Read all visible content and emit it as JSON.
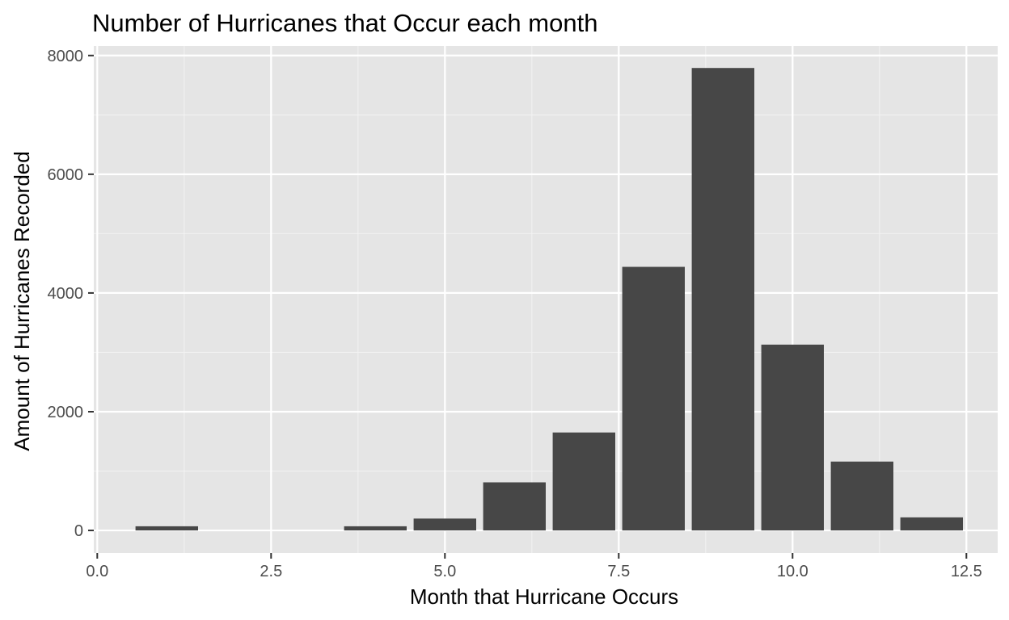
{
  "chart_data": {
    "type": "bar",
    "title": "Number of Hurricanes that Occur each month",
    "xlabel": "Month that Hurricane Occurs",
    "ylabel": "Amount of Hurricanes Recorded",
    "x": [
      1,
      4,
      5,
      6,
      7,
      8,
      9,
      10,
      11,
      12
    ],
    "values": [
      70,
      70,
      200,
      810,
      1650,
      4440,
      7790,
      3130,
      1160,
      220
    ],
    "bar_width": 0.9,
    "xlim": [
      -0.05,
      12.95
    ],
    "ylim": [
      -380,
      8160
    ],
    "x_ticks": [
      0.0,
      2.5,
      5.0,
      7.5,
      10.0,
      12.5
    ],
    "x_tick_labels": [
      "0.0",
      "2.5",
      "5.0",
      "7.5",
      "10.0",
      "12.5"
    ],
    "y_ticks": [
      0,
      2000,
      4000,
      6000,
      8000
    ],
    "y_tick_labels": [
      "0",
      "2000",
      "4000",
      "6000",
      "8000"
    ],
    "grid": true,
    "legend": "none",
    "colors": {
      "panel_background": "#e5e5e5",
      "grid_major": "#ffffff",
      "grid_minor": "#f2f2f2",
      "bar_fill": "#474747",
      "tick_label": "#4d4d4d",
      "tick_mark": "#333333",
      "text": "#000000"
    }
  }
}
